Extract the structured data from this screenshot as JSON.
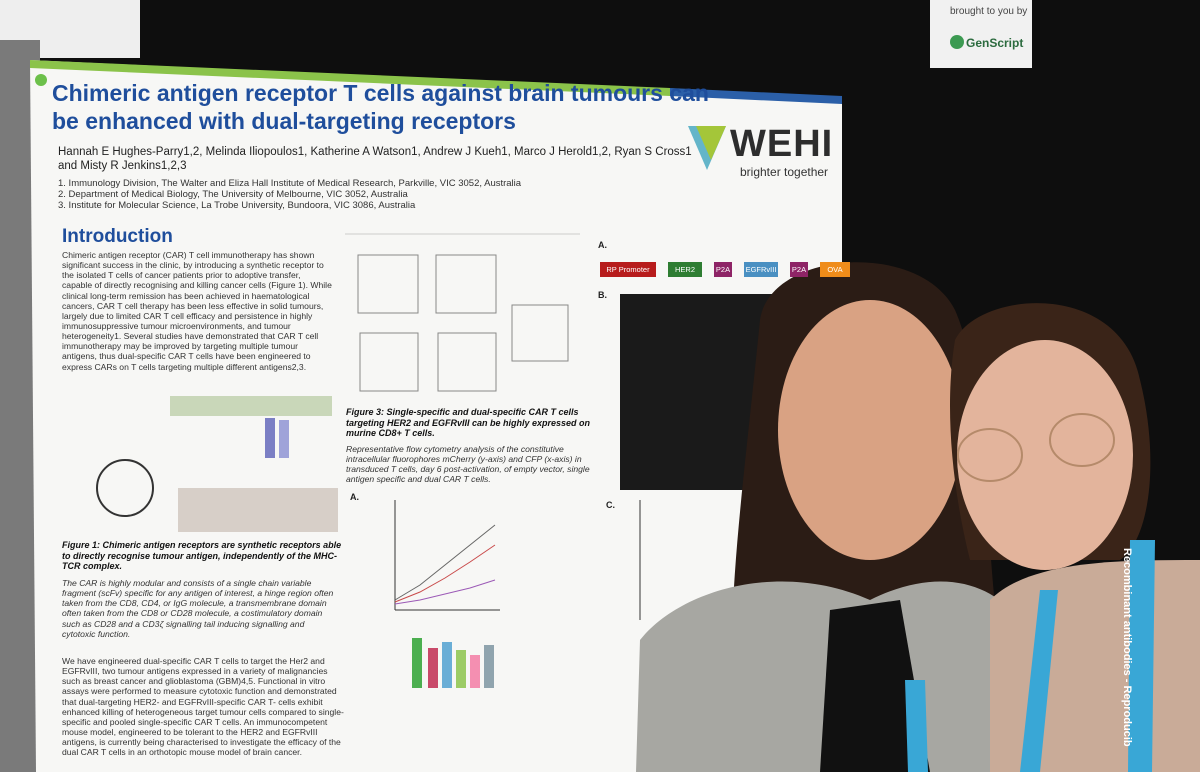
{
  "poster": {
    "title": "Chimeric antigen receptor T cells against brain tumours can be enhanced with dual-targeting receptors",
    "authors": "Hannah E Hughes-Parry1,2, Melinda Iliopoulos1, Katherine A Watson1, Andrew J Kueh1, Marco J Herold1,2, Ryan S Cross1 and Misty R Jenkins1,2,3",
    "affiliations": [
      "1. Immunology Division, The Walter and Eliza Hall Institute of Medical Research, Parkville, VIC 3052, Australia",
      "2. Department of Medical Biology, The University of Melbourne, VIC 3052, Australia",
      "3. Institute for Molecular Science, La Trobe University, Bundoora, VIC 3086, Australia"
    ],
    "logo": {
      "name": "WEHI",
      "tagline": "brighter together"
    },
    "introduction": {
      "heading": "Introduction",
      "paragraph": "Chimeric antigen receptor (CAR) T cell immunotherapy has shown significant success in the clinic, by introducing a synthetic receptor to the isolated T cells of cancer patients prior to adoptive transfer, capable of directly recognising and killing cancer cells (Figure 1). While clinical long-term remission has been achieved in haematological cancers, CAR T cell therapy has been less effective in solid tumours, largely due to limited CAR T cell efficacy and persistence in highly immunosuppressive tumour microenvironments, and tumour heterogeneity1. Several studies have demonstrated that CAR T cell immunotherapy may be improved by targeting multiple tumour antigens, thus dual-specific CAR T cells have been engineered to express CARs on T cells targeting multiple different antigens2,3.",
      "paragraph2": "We have engineered dual-specific CAR T cells to target the Her2 and EGFRvIII, two tumour antigens expressed in a variety of malignancies such as breast cancer and glioblastoma (GBM)4,5. Functional in vitro assays were performed to measure cytotoxic function and demonstrated that dual-targeting HER2- and EGFRvIII-specific CAR T- cells exhibit enhanced killing of heterogeneous target tumour cells compared to single-specific and pooled single-specific CAR T cells. An immunocompetent mouse model, engineered to be tolerant to the HER2 and EGFRvIII antigens, is currently being characterised to investigate the efficacy of the dual CAR T cells in an orthotopic mouse model of brain cancer."
    },
    "figure1": {
      "caption": "Figure 1: Chimeric antigen receptors are synthetic receptors able to directly recognise tumour antigen, independently of the MHC-TCR complex.",
      "text": "The CAR is highly modular and consists of a single chain variable fragment (scFv) specific for any antigen of interest, a hinge region often taken from the CD8, CD4, or IgG molecule, a transmembrane domain often taken from the CD8 or CD28 molecule, a costimulatory domain such as CD28 and a CD3ζ signalling tail inducing signalling and cytotoxic function."
    },
    "figure3": {
      "caption": "Figure 3: Single-specific and dual-specific CAR T cells targeting HER2 and EGFRvIII can be highly expressed on murine CD8+ T cells.",
      "text": "Representative flow cytometry analysis of the constitutive intracellular fluorophores mCherry (y-axis) and CFP (x-axis) in transduced T cells, day 6 post-activation, of empty vector, single antigen specific and dual CAR T cells."
    },
    "panels": [
      "A.",
      "A.",
      "B.",
      "C."
    ],
    "construct": [
      "RP Promoter",
      "HER2",
      "P2A",
      "EGFRvIII",
      "P2A",
      "OVA"
    ]
  },
  "sponsor": {
    "text": "brought to you by",
    "brand": "GenScript"
  },
  "lanyard_text": "Recombinant antibodies - Reproducib"
}
